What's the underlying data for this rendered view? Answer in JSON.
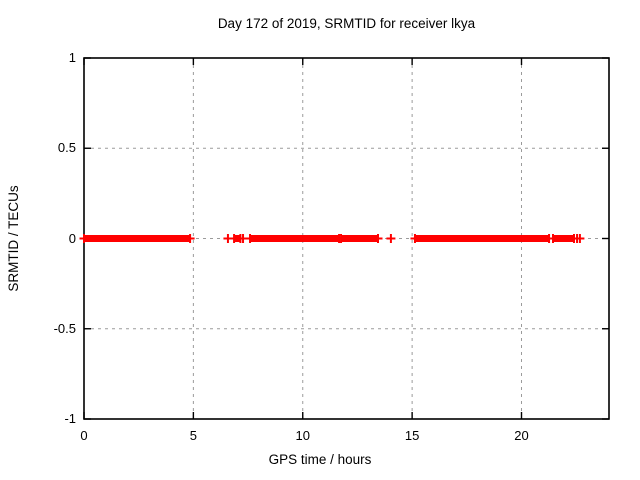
{
  "chart_data": {
    "type": "scatter",
    "title": "Day 172 of 2019, SRMTID for receiver lkya",
    "xlabel": "GPS time / hours",
    "ylabel": "SRMTID / TECUs",
    "xlim": [
      0,
      24
    ],
    "ylim": [
      -1,
      1
    ],
    "xticks": [
      0,
      5,
      10,
      15,
      20
    ],
    "xtick_labels": [
      "0",
      "5",
      "10",
      "15",
      "20"
    ],
    "yticks": [
      1,
      0.5,
      0,
      -0.5,
      -1
    ],
    "ytick_labels": [
      "1",
      "0.5",
      "0",
      "-0.5",
      "-1"
    ],
    "grid": true,
    "legend": false,
    "marker": "plus",
    "colors": {
      "data": "#ff0000",
      "grid": "#9b9b9b",
      "border": "#000000",
      "text": "#000000",
      "background": "#ffffff"
    },
    "series": [
      {
        "name": "SRMTID",
        "color": "#ff0000",
        "y_value": 0,
        "x_segments": [
          [
            0,
            4.85
          ],
          [
            6.86,
            7.15
          ],
          [
            7.59,
            11.66
          ],
          [
            11.75,
            13.44
          ],
          [
            15.13,
            21.26
          ],
          [
            21.44,
            22.4
          ]
        ],
        "x_points": [
          6.58,
          7.27,
          14.03,
          22.54,
          22.67
        ]
      }
    ]
  }
}
